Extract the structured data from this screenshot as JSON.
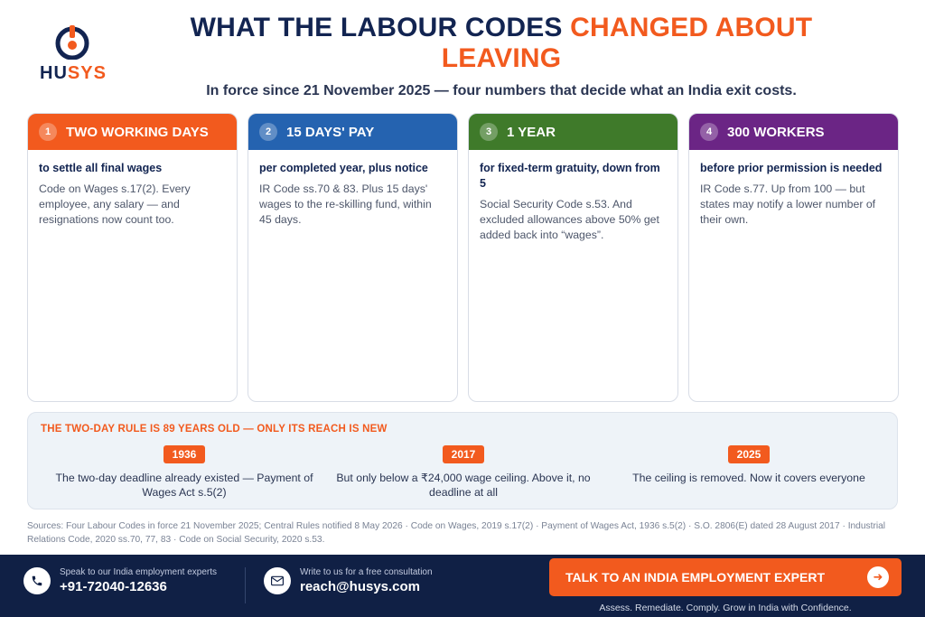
{
  "brand": {
    "logo_part1": "HU",
    "logo_part2": "SYS"
  },
  "header": {
    "title_part1": "WHAT THE LABOUR CODES",
    "title_part2": "CHANGED ABOUT LEAVING",
    "subtitle": "In force since 21 November 2025 — four numbers that decide what an India exit costs."
  },
  "cards": [
    {
      "num": "1",
      "heading": "TWO WORKING DAYS",
      "lead": "to settle all final wages",
      "body": "Code on Wages s.17(2). Every employee, any salary — and resignations now count too.",
      "color": "#f25a1e"
    },
    {
      "num": "2",
      "heading": "15 DAYS' PAY",
      "lead": "per completed year, plus notice",
      "body": "IR Code ss.70 & 83. Plus 15 days' wages to the re-skilling fund, within 45 days.",
      "color": "#2563b0"
    },
    {
      "num": "3",
      "heading": "1 YEAR",
      "lead": "for fixed-term gratuity, down from 5",
      "body": "Social Security Code s.53. And excluded allowances above 50% get added back into “wages”.",
      "color": "#3f7a2a"
    },
    {
      "num": "4",
      "heading": "300 WORKERS",
      "lead": "before prior permission is needed",
      "body": "IR Code s.77. Up from 100 — but states may notify a lower number of their own.",
      "color": "#6b2585"
    }
  ],
  "timeline": {
    "heading": "THE TWO-DAY RULE IS 89 YEARS OLD — ONLY ITS REACH IS NEW",
    "items": [
      {
        "year": "1936",
        "text": "The two-day deadline already existed — Payment of Wages Act s.5(2)"
      },
      {
        "year": "2017",
        "text": "But only below a ₹24,000 wage ceiling. Above it, no deadline at all"
      },
      {
        "year": "2025",
        "text": "The ceiling is removed. Now it covers everyone"
      }
    ]
  },
  "sources": "Sources: Four Labour Codes in force 21 November 2025; Central Rules notified 8 May 2026 · Code on Wages, 2019 s.17(2) · Payment of Wages Act, 1936 s.5(2) · S.O. 2806(E) dated 28 August 2017 · Industrial Relations Code, 2020 ss.70, 77, 83 · Code on Social Security, 2020 s.53.",
  "footer": {
    "phone_label": "Speak to our India employment experts",
    "phone": "+91-72040-12636",
    "email_label": "Write to us for a free consultation",
    "email": "reach@husys.com",
    "cta_label": "TALK TO AN INDIA EMPLOYMENT EXPERT",
    "tagline": "Assess. Remediate. Comply. Grow in India with Confidence.",
    "phone_icon": "phone-icon",
    "email_icon": "mail-icon",
    "cta_icon": "arrow-right-icon"
  },
  "colors": {
    "navy": "#122451",
    "accent": "#f25a1e",
    "footer_bg": "#102045"
  }
}
